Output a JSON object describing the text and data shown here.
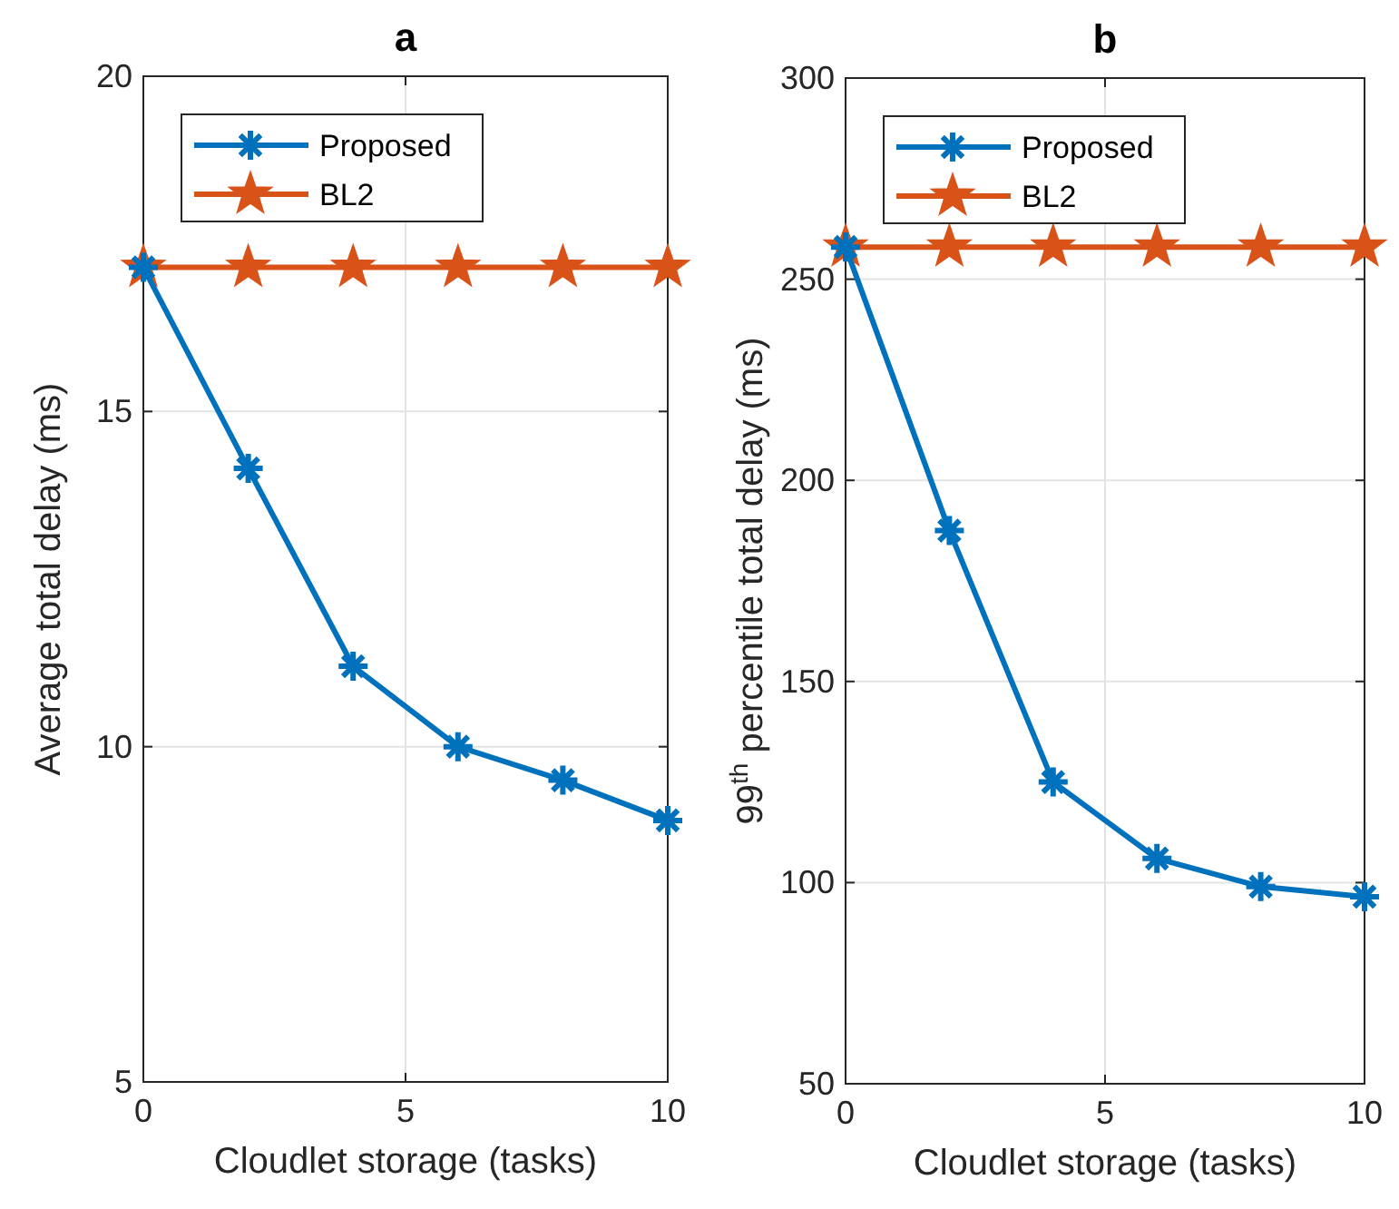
{
  "chart_data": [
    {
      "type": "line",
      "title": "a",
      "xlabel": "Cloudlet storage (tasks)",
      "ylabel": "Average total delay (ms)",
      "x": [
        0,
        2,
        4,
        6,
        8,
        10
      ],
      "xlim": [
        0,
        10
      ],
      "xticks": [
        0,
        5,
        10
      ],
      "ylim": [
        5,
        20
      ],
      "yticks": [
        5,
        10,
        15,
        20
      ],
      "grid": true,
      "legend": "top left",
      "series": [
        {
          "name": "Proposed",
          "color": "#0072bd",
          "marker": "cross",
          "values": [
            17.15,
            14.15,
            11.2,
            10.0,
            9.5,
            8.9
          ]
        },
        {
          "name": "BL2",
          "color": "#d95319",
          "marker": "star",
          "values": [
            17.15,
            17.15,
            17.15,
            17.15,
            17.15,
            17.15
          ]
        }
      ]
    },
    {
      "type": "line",
      "title": "b",
      "xlabel": "Cloudlet storage (tasks)",
      "ylabel": "99$^{th}$ percentile total delay (ms)",
      "x": [
        0,
        2,
        4,
        6,
        8,
        10
      ],
      "xlim": [
        0,
        10
      ],
      "xticks": [
        0,
        5,
        10
      ],
      "ylim": [
        50,
        300
      ],
      "yticks": [
        50,
        100,
        150,
        200,
        250,
        300
      ],
      "grid": true,
      "legend": "top left",
      "series": [
        {
          "name": "Proposed",
          "color": "#0072bd",
          "marker": "cross",
          "values": [
            258,
            187.5,
            125,
            106,
            99,
            96.5
          ]
        },
        {
          "name": "BL2",
          "color": "#d95319",
          "marker": "star",
          "values": [
            258,
            258,
            258,
            258,
            258,
            258
          ]
        }
      ]
    }
  ]
}
